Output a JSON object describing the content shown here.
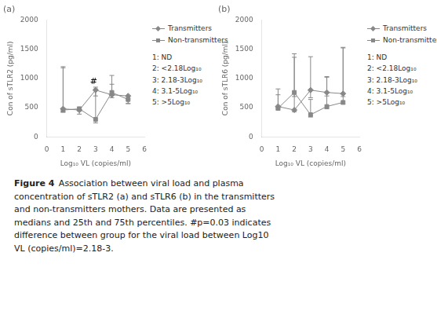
{
  "chart_data": [
    {
      "type": "line",
      "title": "(a)",
      "xlabel": "Log₁₀ VL (copies/ml)",
      "ylabel": "Con of sTLR2 (pg/ml)",
      "xlim": [
        0,
        6
      ],
      "ylim": [
        0,
        2000
      ],
      "xticks": [
        0,
        1,
        2,
        3,
        4,
        5,
        6
      ],
      "yticks": [
        0,
        500,
        1000,
        1500,
        2000
      ],
      "grid": false,
      "legend": "right",
      "series": [
        {
          "name": "Transmitters",
          "color": "#888888",
          "marker": "diamond",
          "x": [
            1,
            2,
            3,
            4,
            5
          ],
          "values": [
            480,
            460,
            800,
            720,
            700
          ],
          "y_lo": [
            420,
            390,
            700,
            670,
            570
          ],
          "y_hi": [
            1200,
            510,
            850,
            1050,
            700
          ]
        },
        {
          "name": "Non-transmitters",
          "color": "#888888",
          "marker": "square",
          "x": [
            1,
            2,
            3,
            4,
            5
          ],
          "values": [
            460,
            480,
            300,
            760,
            640
          ],
          "y_lo": [
            430,
            440,
            240,
            710,
            570
          ],
          "y_hi": [
            1180,
            510,
            820,
            900,
            650
          ]
        }
      ],
      "annotations": [
        {
          "text": "#",
          "x": 2.88,
          "y": 870
        }
      ],
      "legend_notes": [
        "1: ND",
        "2: <2.18Log₁₀",
        "3: 2.18-3Log₁₀",
        "4: 3.1-5Log₁₀",
        "5: >5Log₁₀"
      ]
    },
    {
      "type": "line",
      "title": "(b)",
      "xlabel": "Log₁₀ VL (copies/ml)",
      "ylabel": "Con of sTLR6 (pg/ml)",
      "xlim": [
        0,
        6
      ],
      "ylim": [
        0,
        2000
      ],
      "xticks": [
        0,
        1,
        2,
        3,
        4,
        5,
        6
      ],
      "yticks": [
        0,
        500,
        1000,
        1500,
        2000
      ],
      "grid": false,
      "legend": "right",
      "series": [
        {
          "name": "Transmitters",
          "color": "#888888",
          "marker": "diamond",
          "x": [
            1,
            2,
            3,
            4,
            5
          ],
          "values": [
            520,
            460,
            800,
            760,
            740
          ],
          "y_lo": [
            490,
            430,
            670,
            700,
            690
          ],
          "y_hi": [
            820,
            1420,
            1370,
            1020,
            1530
          ]
        },
        {
          "name": "Non-transmitters",
          "color": "#888888",
          "marker": "square",
          "x": [
            1,
            2,
            3,
            4,
            5
          ],
          "values": [
            490,
            760,
            380,
            520,
            590
          ],
          "y_lo": [
            460,
            690,
            340,
            480,
            560
          ],
          "y_hi": [
            720,
            1360,
            640,
            1030,
            1520
          ]
        }
      ],
      "legend_notes": [
        "1: ND",
        "2: <2.18Log₁₀",
        "3: 2.18-3Log₁₀",
        "4: 3.1-5Log₁₀",
        "5: >5Log₁₀"
      ]
    }
  ],
  "caption": {
    "label": "Figure 4",
    "text": "Association between viral load and plasma\nconcentration of sTLR2 (a) and sTLR6 (b) in the transmitters\nand non-transmitters mothers. Data are presented as\nmedians and 25th and 75th percentiles. #p=0.03 indicates\ndifference between group for the viral load between Log10\nVL (copies/ml)=2.18-3."
  }
}
